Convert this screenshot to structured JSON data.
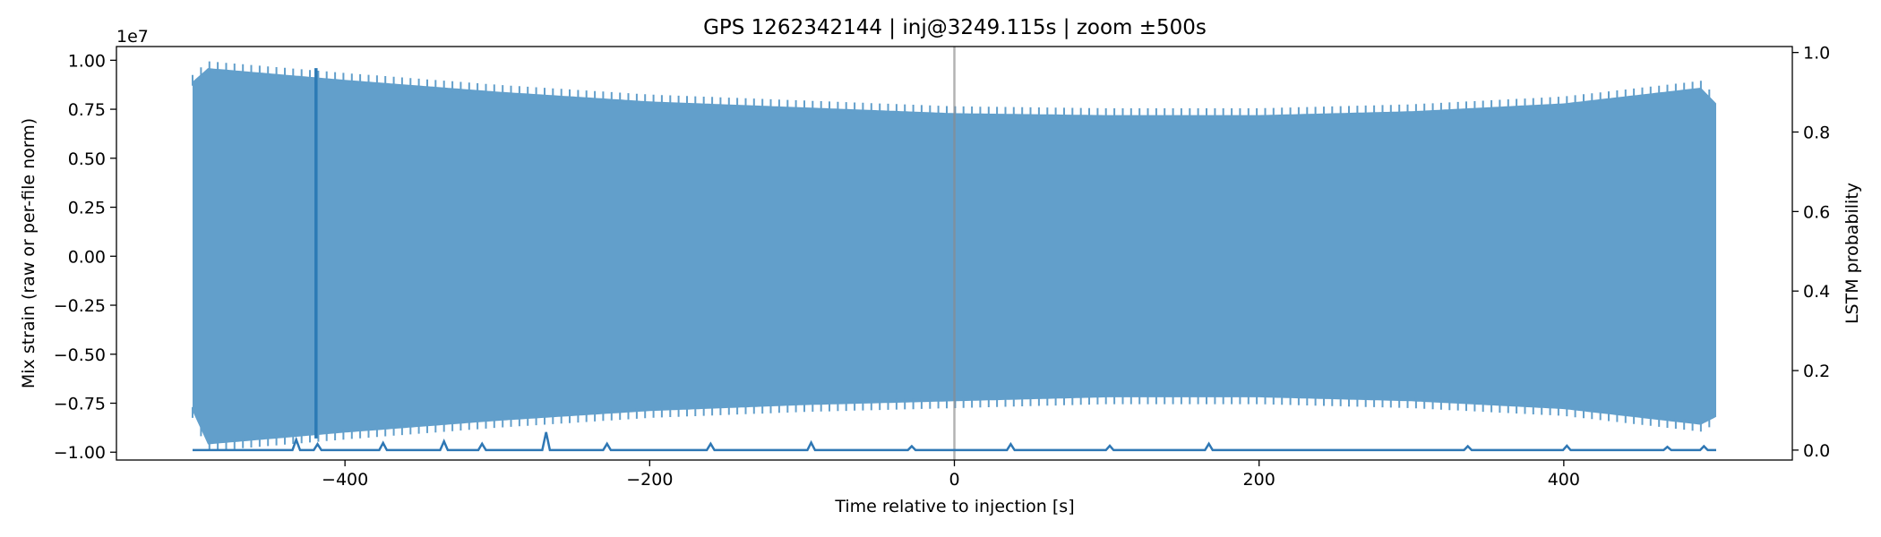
{
  "chart_data": {
    "type": "line",
    "title": "GPS 1262342144 | inj@3249.115s | zoom ±500s",
    "xlabel": "Time relative to injection [s]",
    "ylabel": "Mix strain (raw or per-file norm)",
    "y2label": "LSTM probability",
    "y_offset_text": "1e7",
    "xlim": [
      -550,
      550
    ],
    "ylim": [
      -1.04,
      1.07
    ],
    "y2lim": [
      -0.025,
      1.015
    ],
    "x_ticks": [
      -400,
      -200,
      0,
      200,
      400
    ],
    "x_tick_labels": [
      "−400",
      "−200",
      "0",
      "200",
      "400"
    ],
    "y_ticks": [
      1.0,
      0.75,
      0.5,
      0.25,
      0.0,
      -0.25,
      -0.5,
      -0.75,
      -1.0
    ],
    "y_tick_labels": [
      "1.00",
      "0.75",
      "0.50",
      "0.25",
      "0.00",
      "−0.25",
      "−0.50",
      "−0.75",
      "−1.00"
    ],
    "y2_ticks": [
      0.0,
      0.2,
      0.4,
      0.6,
      0.8,
      1.0
    ],
    "y2_tick_labels": [
      "0.0",
      "0.2",
      "0.4",
      "0.6",
      "0.8",
      "1.0"
    ],
    "injection_marker_x": 0,
    "grid": false,
    "series": [
      {
        "axis": "left",
        "units": "1e7",
        "style": "dense oscillation envelope",
        "x_range": [
          -500,
          500
        ],
        "envelope_x": [
          -500,
          -490,
          -400,
          -300,
          -200,
          -100,
          0,
          100,
          200,
          300,
          400,
          490,
          500
        ],
        "envelope_upper": [
          0.89,
          0.96,
          0.9,
          0.84,
          0.79,
          0.76,
          0.73,
          0.72,
          0.72,
          0.74,
          0.78,
          0.86,
          0.78
        ],
        "envelope_lower": [
          -0.79,
          -0.96,
          -0.9,
          -0.84,
          -0.79,
          -0.76,
          -0.74,
          -0.72,
          -0.72,
          -0.74,
          -0.78,
          -0.86,
          -0.82
        ],
        "spike": {
          "x": -419,
          "upper": 0.96,
          "lower": -0.93
        }
      },
      {
        "axis": "right",
        "style": "line",
        "baseline": 0.0,
        "x_range": [
          -500,
          500
        ],
        "peaks": [
          {
            "x": -432,
            "y": 0.026
          },
          {
            "x": -418,
            "y": 0.015
          },
          {
            "x": -375,
            "y": 0.018
          },
          {
            "x": -335,
            "y": 0.022
          },
          {
            "x": -310,
            "y": 0.016
          },
          {
            "x": -268,
            "y": 0.045
          },
          {
            "x": -228,
            "y": 0.016
          },
          {
            "x": -160,
            "y": 0.016
          },
          {
            "x": -94,
            "y": 0.019
          },
          {
            "x": -28,
            "y": 0.01
          },
          {
            "x": 37,
            "y": 0.015
          },
          {
            "x": 102,
            "y": 0.011
          },
          {
            "x": 167,
            "y": 0.016
          },
          {
            "x": 337,
            "y": 0.01
          },
          {
            "x": 402,
            "y": 0.011
          },
          {
            "x": 468,
            "y": 0.008
          },
          {
            "x": 492,
            "y": 0.01
          }
        ]
      }
    ]
  },
  "colors": {
    "strain_fill": "#629fcb",
    "strain_spike": "#2c7ab5",
    "probability_line": "#2e77b4",
    "injection_line": "#8a8a8a",
    "axes": "#000000"
  }
}
